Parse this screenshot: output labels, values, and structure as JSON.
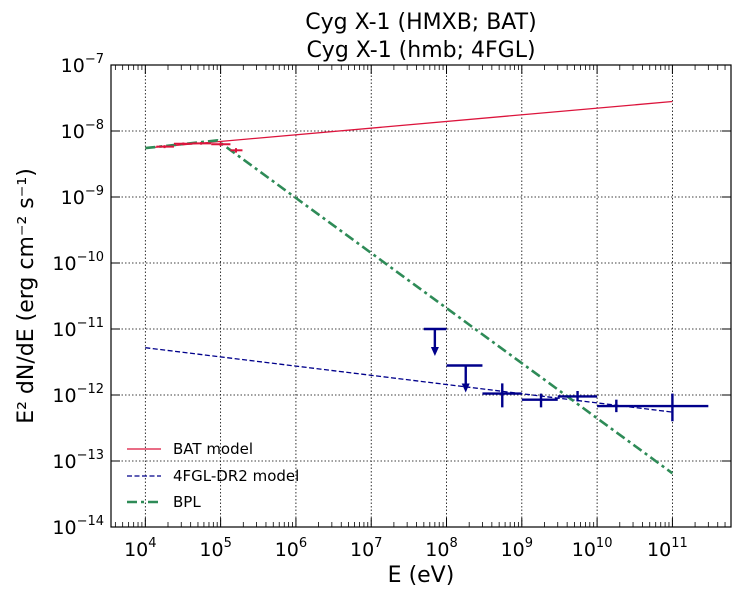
{
  "chart_data": {
    "type": "line",
    "title": "Cyg X-1 (HMXB; BAT)",
    "subtitle": "Cyg X-1 (hmb; 4FGL)",
    "xlabel": "E (eV)",
    "ylabel": "E² dN/dE (erg cm⁻² s⁻¹)",
    "xscale": "log",
    "yscale": "log",
    "xlim": [
      3500.0,
      600000000000.0
    ],
    "ylim": [
      1e-14,
      1e-07
    ],
    "grid": true,
    "legend_position": "lower-left",
    "xticks": [
      {
        "value": 10000.0,
        "base": "10",
        "exp": "4"
      },
      {
        "value": 100000.0,
        "base": "10",
        "exp": "5"
      },
      {
        "value": 1000000.0,
        "base": "10",
        "exp": "6"
      },
      {
        "value": 10000000.0,
        "base": "10",
        "exp": "7"
      },
      {
        "value": 100000000.0,
        "base": "10",
        "exp": "8"
      },
      {
        "value": 1000000000.0,
        "base": "10",
        "exp": "9"
      },
      {
        "value": 10000000000.0,
        "base": "10",
        "exp": "10"
      },
      {
        "value": 100000000000.0,
        "base": "10",
        "exp": "11"
      }
    ],
    "yticks": [
      {
        "value": 1e-14,
        "base": "10",
        "exp": "−14"
      },
      {
        "value": 1e-13,
        "base": "10",
        "exp": "−13"
      },
      {
        "value": 1e-12,
        "base": "10",
        "exp": "−12"
      },
      {
        "value": 1e-11,
        "base": "10",
        "exp": "−11"
      },
      {
        "value": 1e-10,
        "base": "10",
        "exp": "−10"
      },
      {
        "value": 1e-09,
        "base": "10",
        "exp": "−9"
      },
      {
        "value": 1e-08,
        "base": "10",
        "exp": "−8"
      },
      {
        "value": 1e-07,
        "base": "10",
        "exp": "−7"
      }
    ],
    "series": [
      {
        "name": "BAT model",
        "style": "solid",
        "color": "#dc143c",
        "x": [
          10000.0,
          100000000000.0
        ],
        "y": [
          5.5e-09,
          2.8e-08
        ]
      },
      {
        "name": "4FGL-DR2 model",
        "style": "dashed",
        "color": "#00008b",
        "x": [
          10000.0,
          100000000000.0
        ],
        "y": [
          5.2e-12,
          5.5e-13
        ]
      },
      {
        "name": "BPL",
        "style": "dashdot",
        "color": "#2e8b57",
        "x": [
          10000.0,
          90000.0,
          100000000000.0
        ],
        "y": [
          5.5e-09,
          7.2e-09,
          6.5e-14
        ]
      }
    ],
    "bat_points": {
      "color": "#dc143c",
      "points": [
        {
          "x": 18000.0,
          "xlo": 14000.0,
          "xhi": 24000.0,
          "y": 5.8e-09,
          "ylo": 5.5e-09,
          "yhi": 6.1e-09
        },
        {
          "x": 32000.0,
          "xlo": 24000.0,
          "xhi": 42000.0,
          "y": 6.4e-09,
          "ylo": 6.1e-09,
          "yhi": 6.7e-09
        },
        {
          "x": 55000.0,
          "xlo": 42000.0,
          "xhi": 75000.0,
          "y": 6.5e-09,
          "ylo": 6.2e-09,
          "yhi": 6.8e-09
        },
        {
          "x": 100000.0,
          "xlo": 75000.0,
          "xhi": 135000.0,
          "y": 6.3e-09,
          "ylo": 5.9e-09,
          "yhi": 6.7e-09
        },
        {
          "x": 160000.0,
          "xlo": 135000.0,
          "xhi": 195000.0,
          "y": 5.1e-09,
          "ylo": 4.7e-09,
          "yhi": 5.5e-09
        }
      ]
    },
    "fermi_points": {
      "color": "#00008b",
      "points": [
        {
          "x": 70000000.0,
          "xlo": 50000000.0,
          "xhi": 100000000.0,
          "y": 1e-11,
          "upper_limit": true
        },
        {
          "x": 180000000.0,
          "xlo": 100000000.0,
          "xhi": 300000000.0,
          "y": 2.8e-12,
          "upper_limit": true
        },
        {
          "x": 550000000.0,
          "xlo": 300000000.0,
          "xhi": 1000000000.0,
          "y": 1.05e-12,
          "ylo": 6.5e-13,
          "yhi": 1.5e-12,
          "upper_limit": false
        },
        {
          "x": 1800000000.0,
          "xlo": 1000000000.0,
          "xhi": 3000000000.0,
          "y": 8.5e-13,
          "ylo": 6.5e-13,
          "yhi": 1.05e-12,
          "upper_limit": false
        },
        {
          "x": 5500000000.0,
          "xlo": 3000000000.0,
          "xhi": 10000000000.0,
          "y": 9.5e-13,
          "ylo": 8e-13,
          "yhi": 1.15e-12,
          "upper_limit": false
        },
        {
          "x": 18000000000.0,
          "xlo": 10000000000.0,
          "xhi": 30000000000.0,
          "y": 6.8e-13,
          "ylo": 5.5e-13,
          "yhi": 8.5e-13,
          "upper_limit": false
        },
        {
          "x": 100000000000.0,
          "xlo": 30000000000.0,
          "xhi": 300000000000.0,
          "y": 6.8e-13,
          "ylo": 4e-13,
          "yhi": 1.05e-12,
          "upper_limit": false
        }
      ]
    }
  }
}
